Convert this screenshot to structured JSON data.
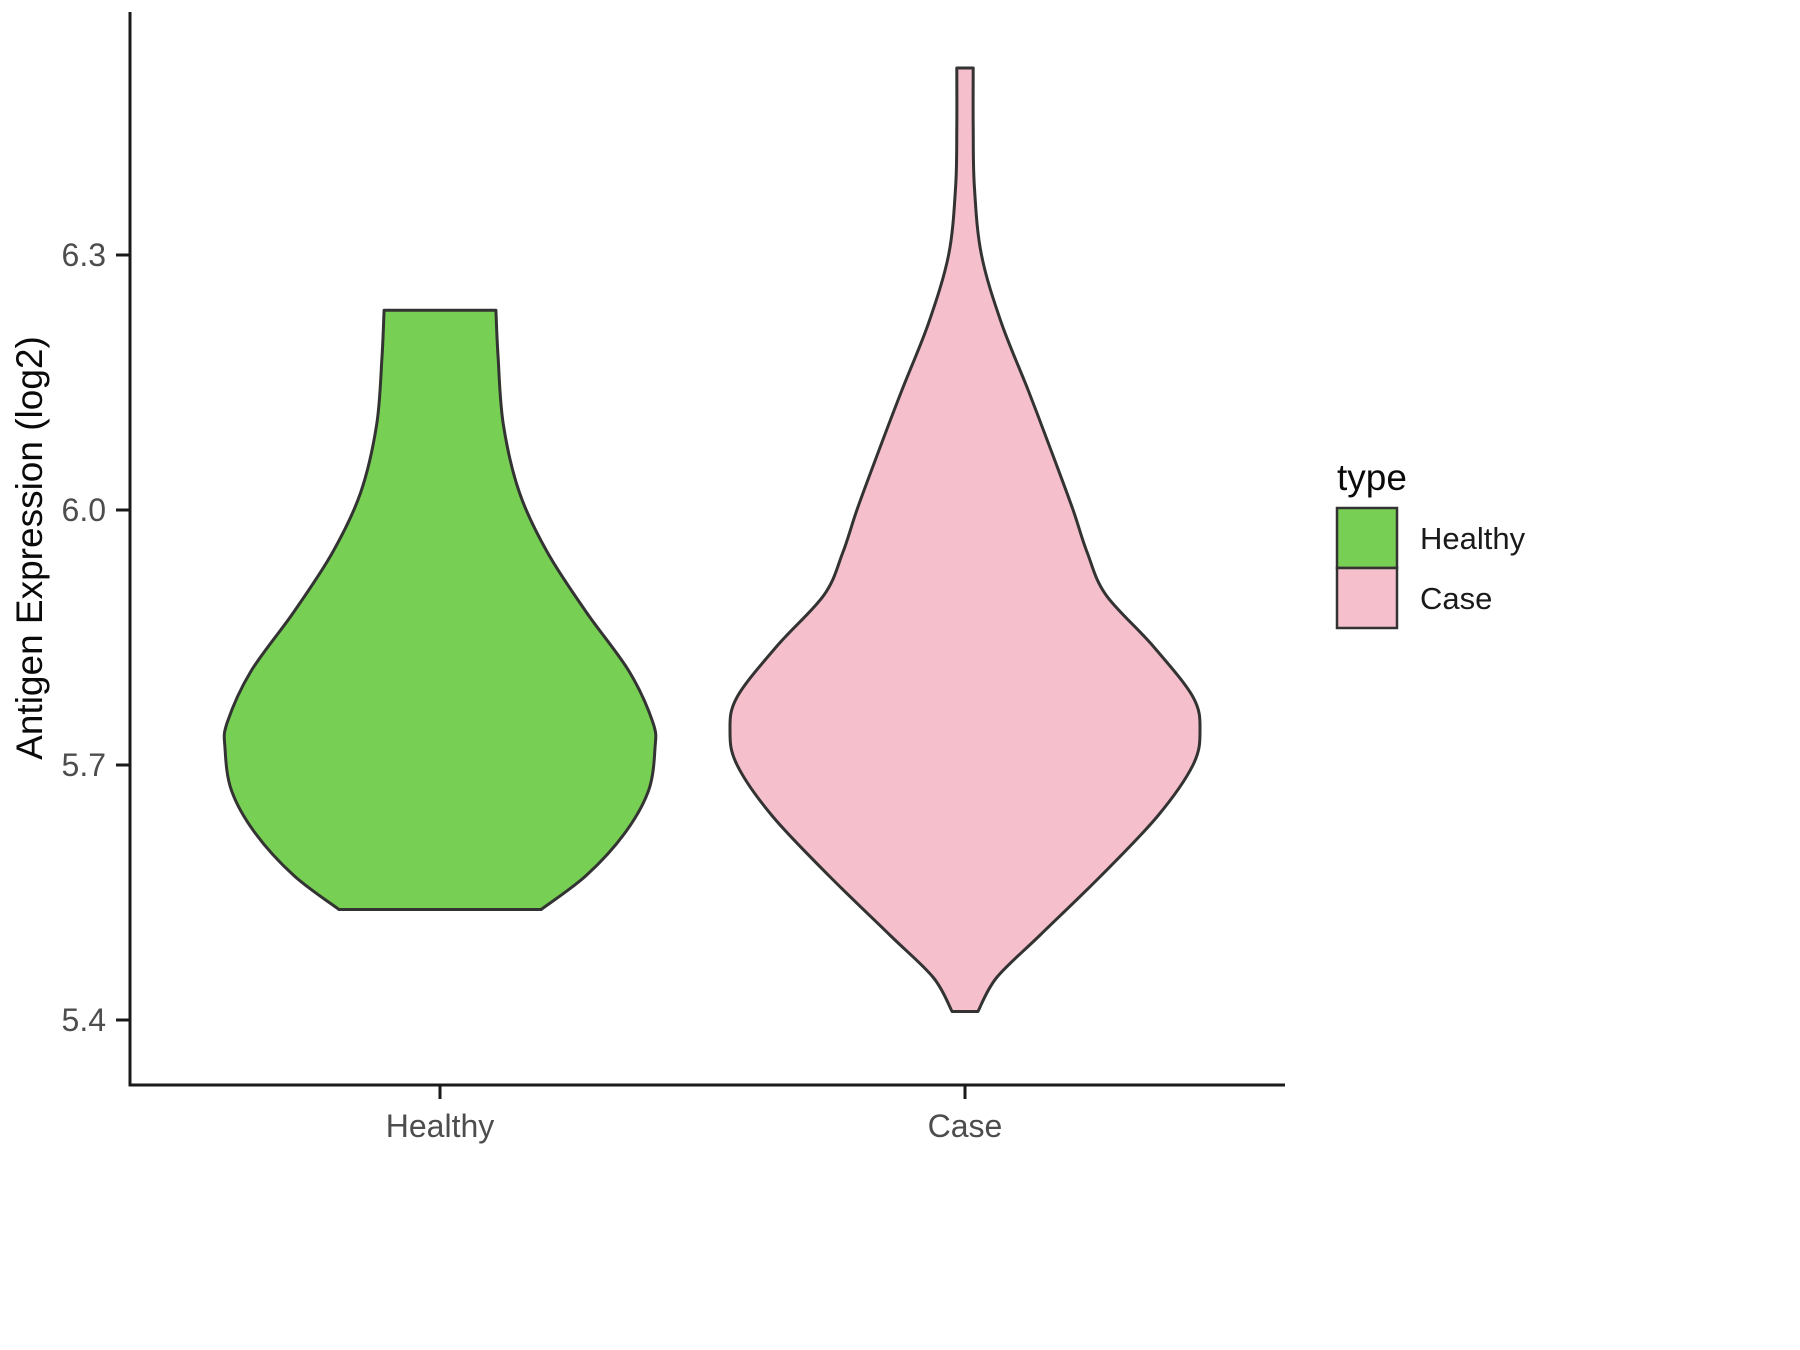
{
  "chart_data": {
    "type": "violin",
    "title": "",
    "xlabel": "",
    "ylabel": "Antigen Expression (log2)",
    "categories": [
      "Healthy",
      "Case"
    ],
    "y_ticks": {
      "labels": [
        "5.4",
        "5.7",
        "6.0",
        "6.3"
      ],
      "values": [
        5.4,
        5.7,
        6.0,
        6.3
      ]
    },
    "ylim": [
      5.33,
      6.58
    ],
    "grid": false,
    "legend": {
      "title": "type",
      "position": "right",
      "entries": [
        {
          "label": "Healthy",
          "color": "#77d053"
        },
        {
          "label": "Case",
          "color": "#f5bfcb"
        }
      ]
    },
    "series": [
      {
        "name": "Healthy",
        "fill": "#77d053",
        "outline": "#333333",
        "value_range": [
          5.53,
          6.235
        ],
        "peak_value": 5.72,
        "profile": [
          [
            6.235,
            0.26
          ],
          [
            6.18,
            0.27
          ],
          [
            6.1,
            0.295
          ],
          [
            6.02,
            0.37
          ],
          [
            5.95,
            0.5
          ],
          [
            5.88,
            0.68
          ],
          [
            5.81,
            0.88
          ],
          [
            5.75,
            0.99
          ],
          [
            5.72,
            1.0
          ],
          [
            5.67,
            0.97
          ],
          [
            5.62,
            0.86
          ],
          [
            5.57,
            0.68
          ],
          [
            5.53,
            0.47
          ]
        ]
      },
      {
        "name": "Case",
        "fill": "#f5bfcb",
        "outline": "#333333",
        "value_range": [
          5.41,
          6.52
        ],
        "peak_value": 5.74,
        "profile": [
          [
            6.52,
            0.035
          ],
          [
            6.45,
            0.035
          ],
          [
            6.38,
            0.04
          ],
          [
            6.3,
            0.07
          ],
          [
            6.22,
            0.155
          ],
          [
            6.14,
            0.27
          ],
          [
            6.06,
            0.38
          ],
          [
            6.0,
            0.46
          ],
          [
            5.95,
            0.52
          ],
          [
            5.9,
            0.6
          ],
          [
            5.84,
            0.8
          ],
          [
            5.78,
            0.97
          ],
          [
            5.74,
            1.0
          ],
          [
            5.7,
            0.97
          ],
          [
            5.64,
            0.82
          ],
          [
            5.57,
            0.58
          ],
          [
            5.5,
            0.32
          ],
          [
            5.45,
            0.135
          ],
          [
            5.41,
            0.055
          ]
        ]
      }
    ]
  },
  "colors": {
    "axis": "#1a1a1a",
    "tick_text": "#4d4d4d",
    "title_text": "#0a0a0a",
    "violin_stroke": "#333333",
    "background": "#ffffff"
  }
}
